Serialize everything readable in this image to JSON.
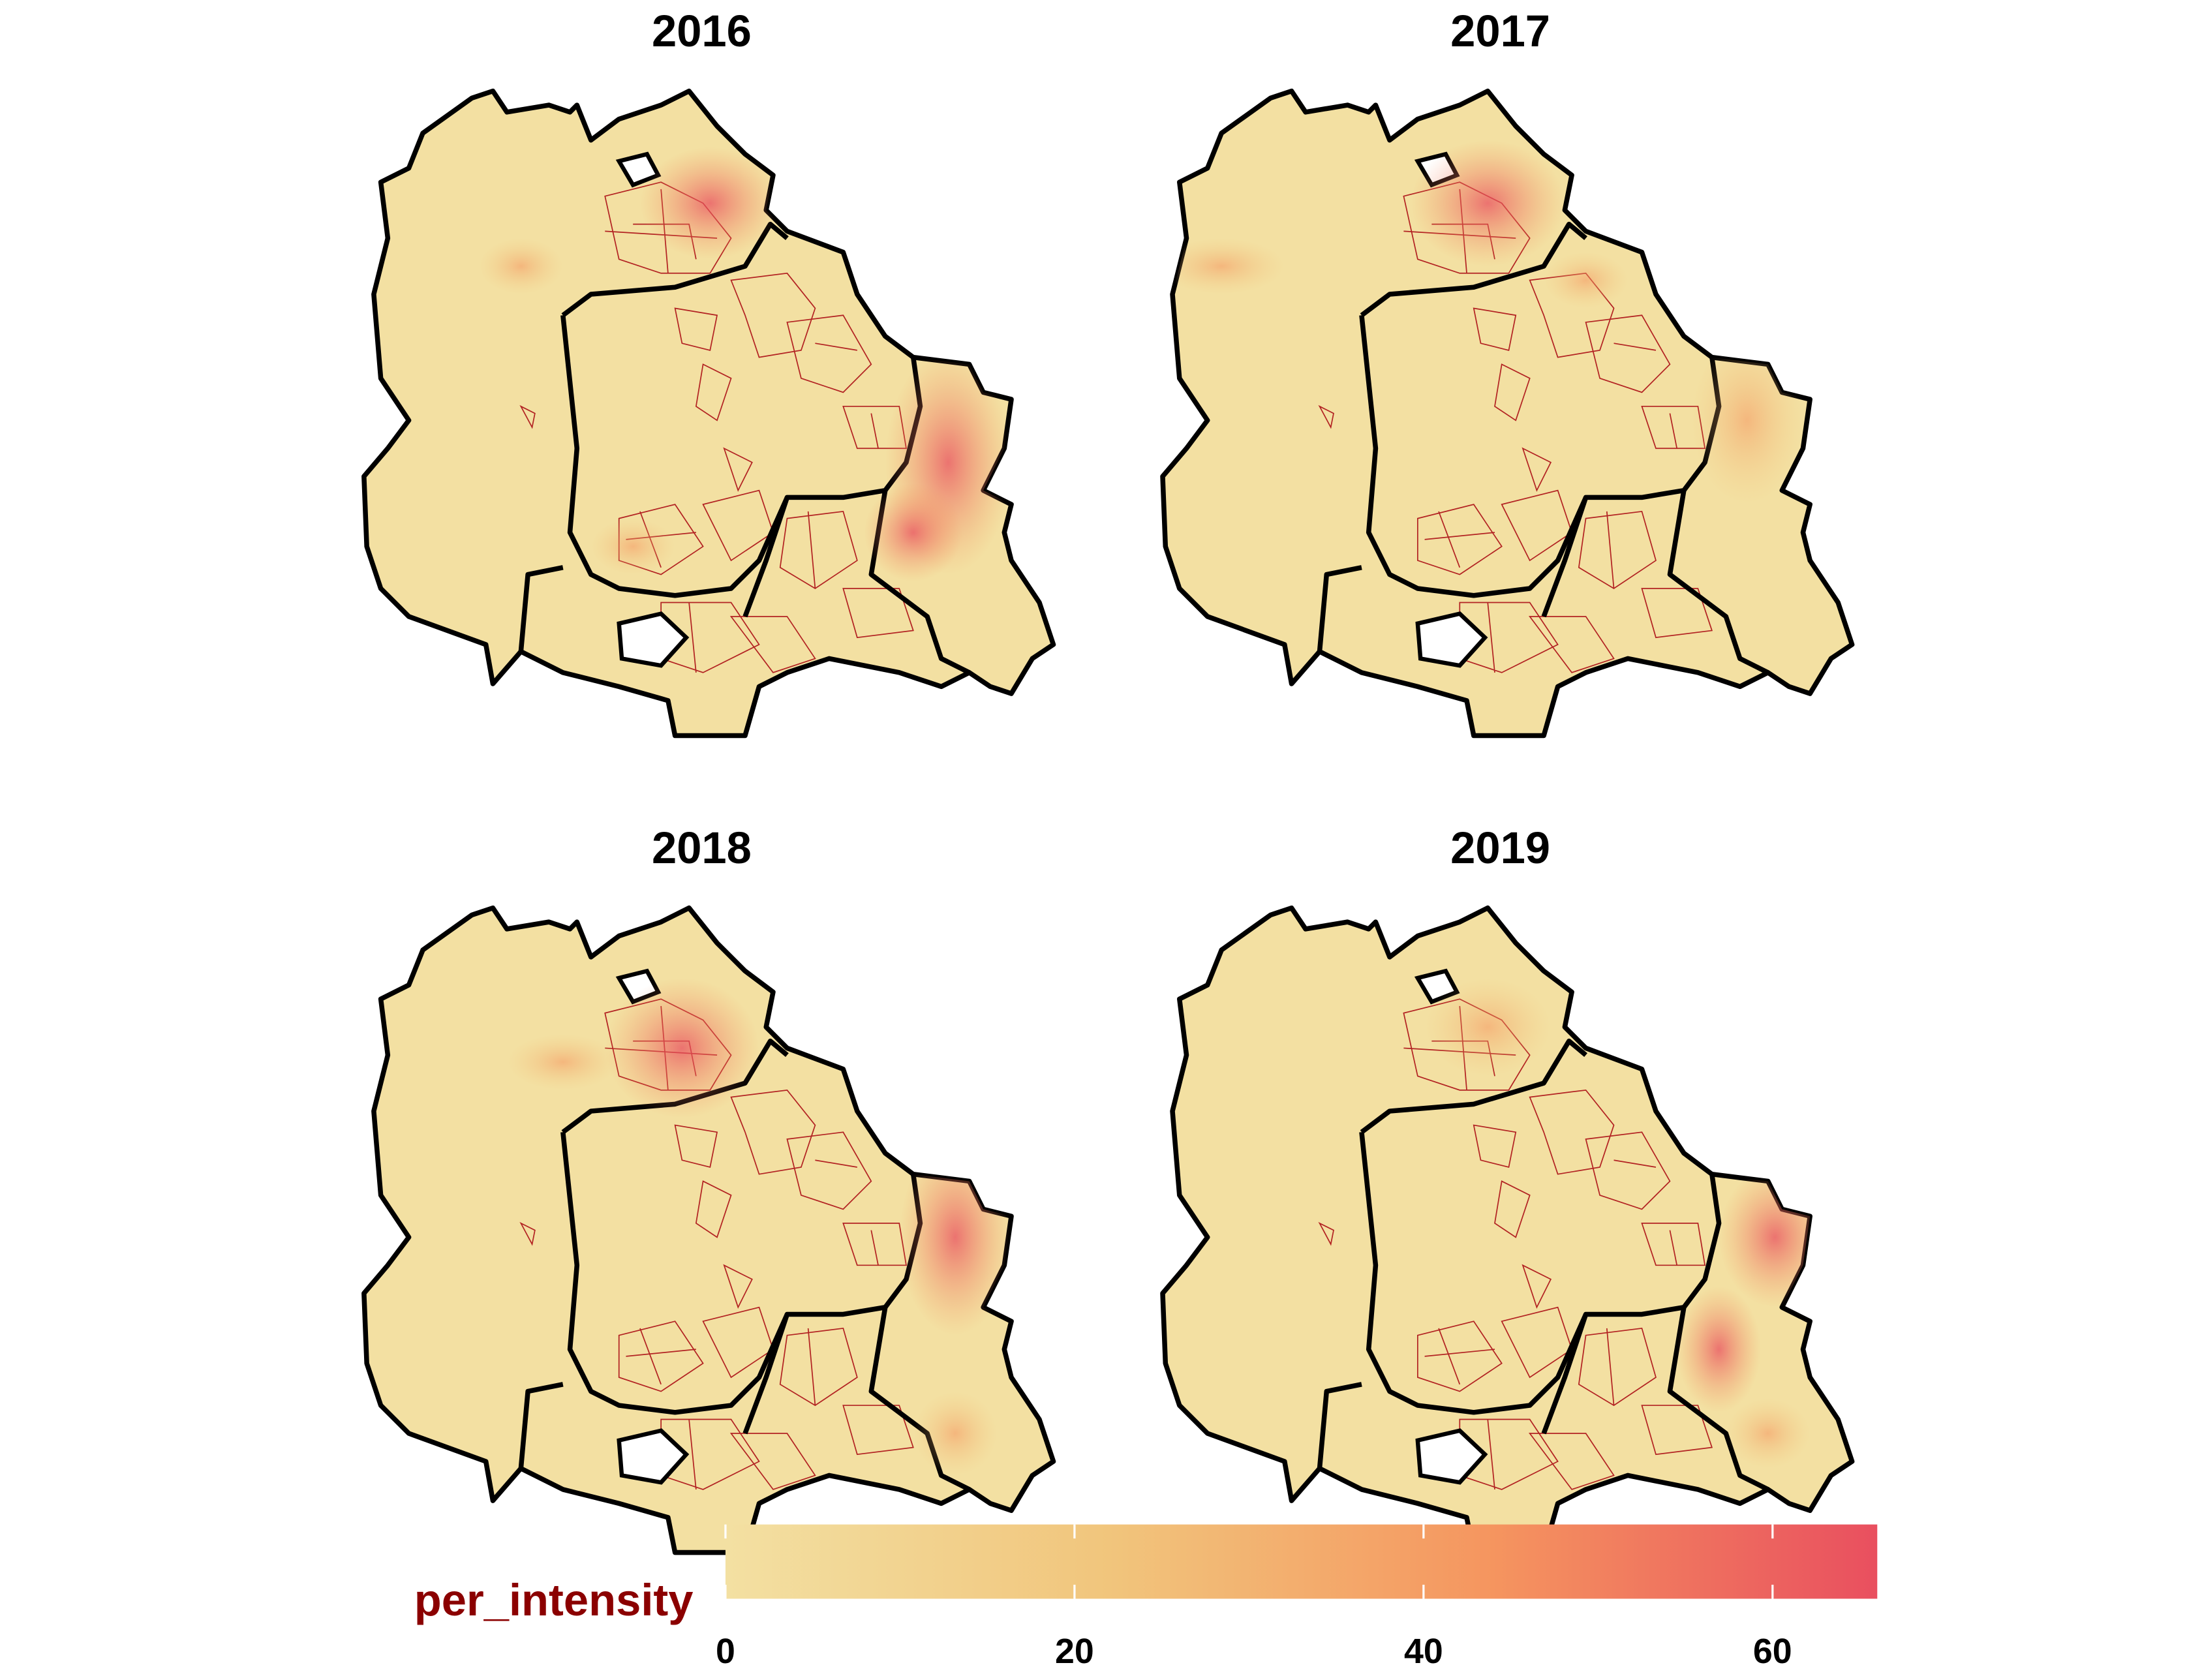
{
  "panels": [
    {
      "title": "2016"
    },
    {
      "title": "2017"
    },
    {
      "title": "2018"
    },
    {
      "title": "2019"
    }
  ],
  "legend": {
    "title": "per_intensity",
    "range": [
      0,
      66
    ],
    "ticks": [
      0,
      20,
      40,
      60
    ],
    "colors": [
      "#f3e0a2",
      "#f1c57c",
      "#f5955f",
      "#e94f5f"
    ]
  }
}
